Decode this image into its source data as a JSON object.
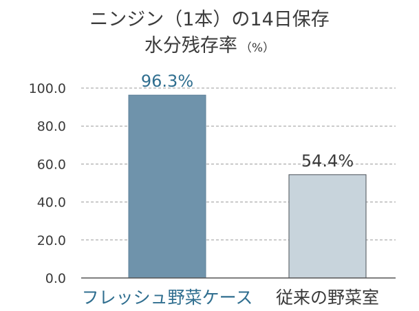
{
  "chart_data": {
    "type": "bar",
    "title_line1": "ニンジン（1本）の14日保存",
    "title_line2": "水分残存率",
    "unit": "（%）",
    "categories": [
      "フレッシュ野菜ケース",
      "従来の野菜室"
    ],
    "values": [
      96.3,
      54.4
    ],
    "value_labels": [
      "96.3%",
      "54.4%"
    ],
    "ylim": [
      0,
      100
    ],
    "yticks": [
      "0.0",
      "20.0",
      "40.0",
      "60.0",
      "80.0",
      "100.0"
    ],
    "ytick_values": [
      0,
      20,
      40,
      60,
      80,
      100
    ],
    "grid": true,
    "colors": {
      "bar1": "#6f93ab",
      "bar2": "#c8d4dc",
      "accent_text": "#2f6e8f",
      "grid": "#9a9a9a",
      "axis_text": "#3a3a3a"
    }
  }
}
